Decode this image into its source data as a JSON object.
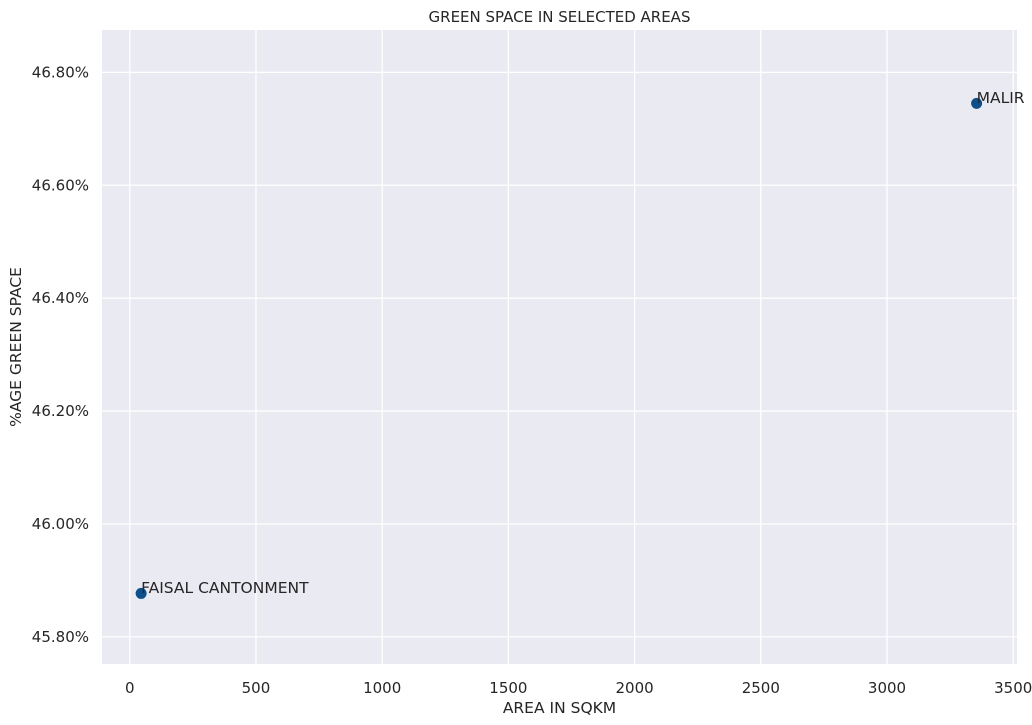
{
  "chart_data": {
    "type": "scatter",
    "title": "GREEN SPACE IN SELECTED AREAS",
    "xlabel": "AREA IN SQKM",
    "ylabel": "%AGE GREEN SPACE",
    "xlim": [
      -110,
      3515
    ],
    "ylim": [
      45.752,
      46.875
    ],
    "x_ticks": [
      0,
      500,
      1000,
      1500,
      2000,
      2500,
      3000,
      3500
    ],
    "x_tick_labels": [
      "0",
      "500",
      "1000",
      "1500",
      "2000",
      "2500",
      "3000",
      "3500"
    ],
    "y_ticks": [
      45.8,
      46.0,
      46.2,
      46.4,
      46.6,
      46.8
    ],
    "y_tick_labels": [
      "45.80%",
      "46.00%",
      "46.20%",
      "46.40%",
      "46.60%",
      "46.80%"
    ],
    "grid": true,
    "background_color": "#eaeaf2",
    "grid_color": "#ffffff",
    "point_color": "#0d4f8b",
    "points": [
      {
        "label": "FAISAL CANTONMENT",
        "x": 45,
        "y": 45.877
      },
      {
        "label": "MALIR",
        "x": 3355,
        "y": 46.745
      }
    ]
  }
}
